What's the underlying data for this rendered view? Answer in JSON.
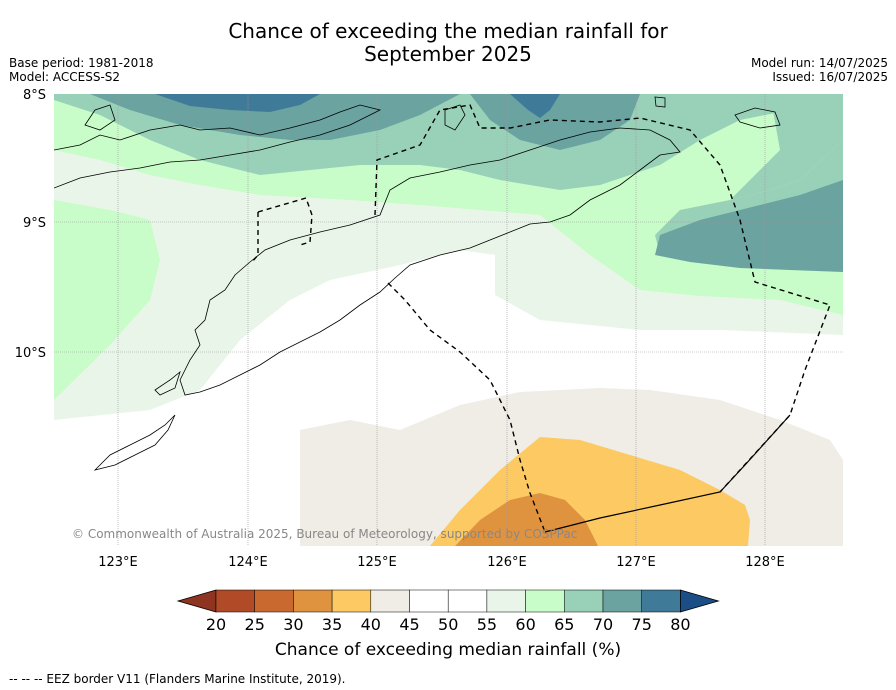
{
  "title_line1": "Chance of exceeding the median rainfall for",
  "title_line2": "September 2025",
  "meta_left": {
    "base_period": "Base period: 1981-2018",
    "model": "Model: ACCESS-S2"
  },
  "meta_right": {
    "model_run": "Model run: 14/07/2025",
    "issued": "Issued: 16/07/2025"
  },
  "map": {
    "lat_labels": [
      "8°S",
      "9°S",
      "10°S"
    ],
    "lon_labels": [
      "123°E",
      "124°E",
      "125°E",
      "126°E",
      "127°E",
      "128°E"
    ],
    "copyright": "© Commonwealth of Australia 2025, Bureau of Meteorology, supported by COSPPac",
    "legend_footer": "--  --  -- EEZ border V11 (Flanders Marine Institute, 2019)."
  },
  "colorbar": {
    "title": "Chance of exceeding median rainfall (%)",
    "ticks": [
      "20",
      "25",
      "30",
      "35",
      "40",
      "45",
      "50",
      "55",
      "60",
      "65",
      "70",
      "75",
      "80"
    ],
    "colors": [
      "#8e3420",
      "#b04a27",
      "#c9692f",
      "#e0933f",
      "#fcc962",
      "#f0ece6",
      "#ffffff",
      "#ffffff",
      "#e9f5e9",
      "#c8fcc8",
      "#99d1b8",
      "#6aa3a0",
      "#3f7b99",
      "#1b4e86"
    ]
  },
  "colors": {
    "land_outline": "#000000",
    "grid": "#999999"
  }
}
